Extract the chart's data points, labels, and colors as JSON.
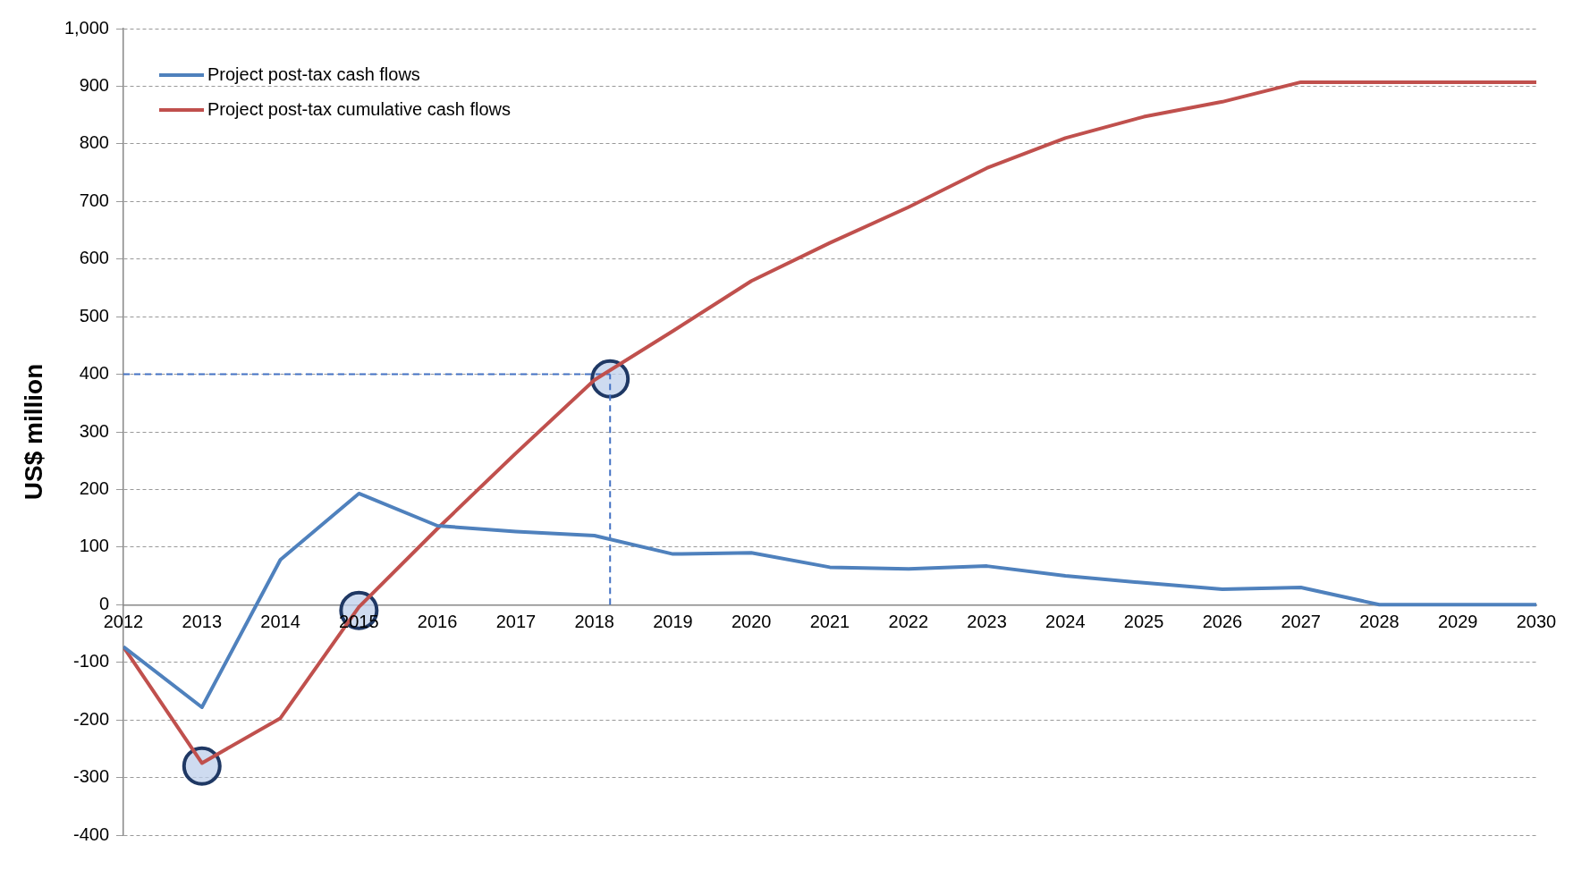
{
  "chart_data": {
    "type": "line",
    "ylabel": "US$ million",
    "x": [
      2012,
      2013,
      2014,
      2015,
      2016,
      2017,
      2018,
      2019,
      2020,
      2021,
      2022,
      2023,
      2024,
      2025,
      2026,
      2027,
      2028,
      2029,
      2030
    ],
    "series": [
      {
        "name": "Project post-tax cash flows",
        "color": "#4f81bd",
        "values": [
          -73,
          -178,
          78,
          193,
          137,
          127,
          120,
          88,
          90,
          65,
          62,
          67,
          50,
          38,
          27,
          30,
          0,
          0,
          0
        ]
      },
      {
        "name": "Project post-tax cumulative cash flows",
        "color": "#c0504d",
        "values": [
          -73,
          -275,
          -197,
          -4,
          132,
          263,
          390,
          475,
          562,
          628,
          690,
          758,
          810,
          847,
          873,
          907,
          907,
          907,
          907
        ]
      },
      {
        "type": "line",
        "color": "#4472c4",
        "line_style": "dashed",
        "marker": "none",
        "x": [
          2012,
          2018.2
        ],
        "values": [
          400,
          400
        ]
      },
      {
        "type": "line",
        "color": "#4472c4",
        "line_style": "dashed",
        "marker": "none",
        "x": [
          2018.2,
          2018.2
        ],
        "values": [
          0,
          400
        ]
      },
      {
        "type": "scatter",
        "color": "#1f3864",
        "marker": "circle",
        "x": [
          2013,
          2015,
          2018.2
        ],
        "values": [
          -280,
          -10,
          392
        ]
      }
    ],
    "xlim": [
      2012,
      2030
    ],
    "xticks": [
      2012,
      2013,
      2014,
      2015,
      2016,
      2017,
      2018,
      2019,
      2020,
      2021,
      2022,
      2023,
      2024,
      2025,
      2026,
      2027,
      2028,
      2029,
      2030
    ],
    "ylim": [
      -400,
      1000
    ],
    "yticks": [
      -400,
      -300,
      -200,
      -100,
      0,
      100,
      200,
      300,
      400,
      500,
      600,
      700,
      800,
      900,
      {
        "value": 1000,
        "label": "1,000"
      }
    ],
    "grid": "y",
    "legend": "top left",
    "marker": "none",
    "line_style": "solid"
  }
}
